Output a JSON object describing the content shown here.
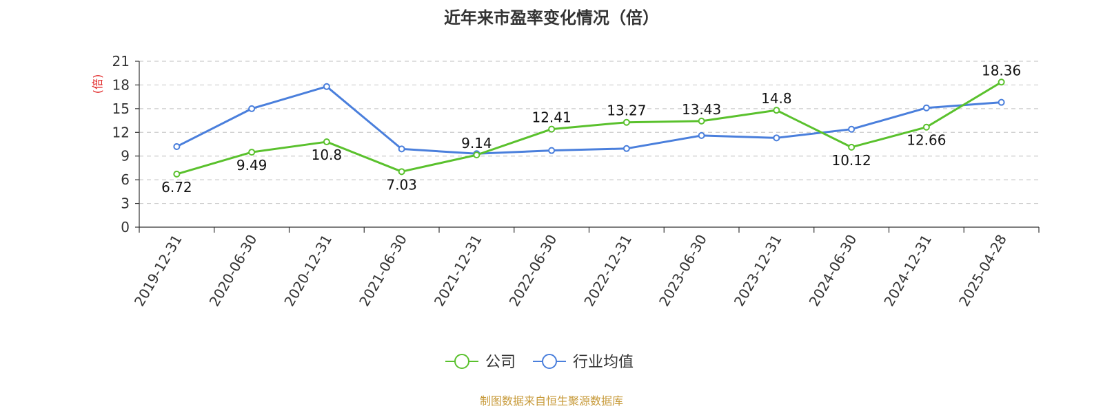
{
  "chart_data": {
    "type": "line",
    "title": "近年来市盈率变化情况（倍）",
    "ylabel": "(倍)",
    "ylabel_color": "#e02020",
    "categories": [
      "2019-12-31",
      "2020-06-30",
      "2020-12-31",
      "2021-06-30",
      "2021-12-31",
      "2022-06-30",
      "2022-12-31",
      "2023-06-30",
      "2023-12-31",
      "2024-06-30",
      "2024-12-31",
      "2025-04-28"
    ],
    "ylim": [
      0,
      21
    ],
    "yticks": [
      0,
      3,
      6,
      9,
      12,
      15,
      18,
      21
    ],
    "grid": true,
    "legend_position": "bottom-center",
    "series": [
      {
        "name": "公司",
        "color": "#5ac12d",
        "show_labels": true,
        "values": [
          6.72,
          9.49,
          10.8,
          7.03,
          9.14,
          12.41,
          13.27,
          13.43,
          14.8,
          10.12,
          12.66,
          18.36
        ],
        "labels": [
          "6.72",
          "9.49",
          "10.8",
          "7.03",
          "9.14",
          "12.41",
          "13.27",
          "13.43",
          "14.8",
          "10.12",
          "12.66",
          "18.36"
        ]
      },
      {
        "name": "行业均值",
        "color": "#4a7fdc",
        "show_labels": false,
        "values": [
          10.2,
          15.0,
          17.8,
          9.9,
          9.3,
          9.7,
          9.95,
          11.6,
          11.3,
          12.4,
          15.1,
          15.8
        ]
      }
    ]
  },
  "footer": {
    "source_text": "制图数据来自恒生聚源数据库",
    "source_color": "#c79a3a"
  }
}
